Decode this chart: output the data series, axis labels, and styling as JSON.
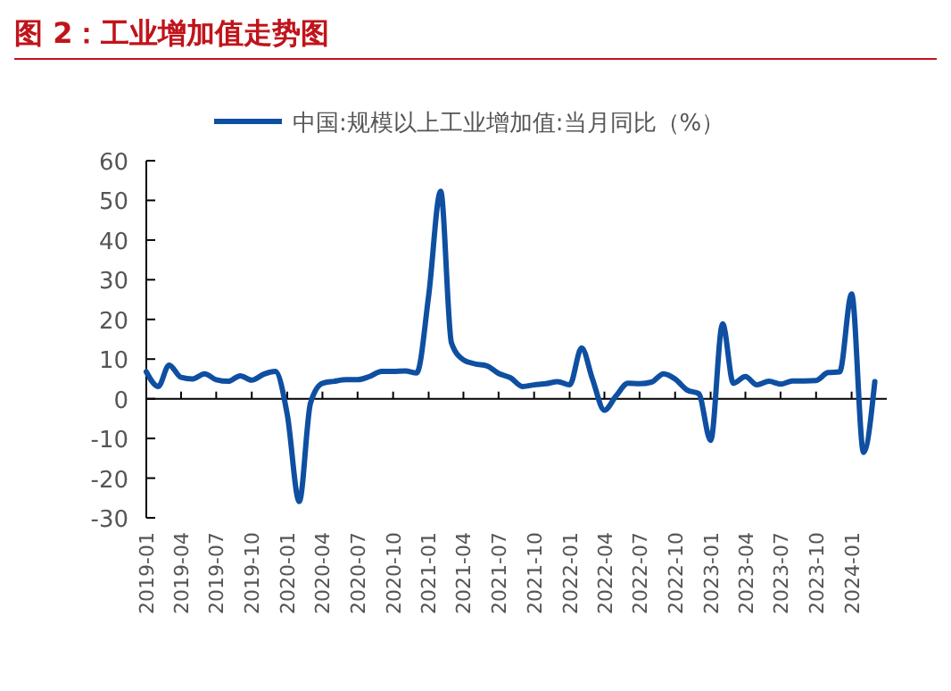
{
  "chart_data": {
    "type": "line",
    "title": "图 2：工业增加值走势图",
    "x": [
      "2019-01",
      "2019-02",
      "2019-03",
      "2019-04",
      "2019-05",
      "2019-06",
      "2019-07",
      "2019-08",
      "2019-09",
      "2019-10",
      "2019-11",
      "2019-12",
      "2020-01",
      "2020-02",
      "2020-03",
      "2020-04",
      "2020-05",
      "2020-06",
      "2020-07",
      "2020-08",
      "2020-09",
      "2020-10",
      "2020-11",
      "2020-12",
      "2021-01",
      "2021-02",
      "2021-03",
      "2021-04",
      "2021-05",
      "2021-06",
      "2021-07",
      "2021-08",
      "2021-09",
      "2021-10",
      "2021-11",
      "2021-12",
      "2022-01",
      "2022-02",
      "2022-03",
      "2022-04",
      "2022-05",
      "2022-06",
      "2022-07",
      "2022-08",
      "2022-09",
      "2022-10",
      "2022-11",
      "2022-12",
      "2023-01",
      "2023-02",
      "2023-03",
      "2023-04",
      "2023-05",
      "2023-06",
      "2023-07",
      "2023-08",
      "2023-09",
      "2023-10",
      "2023-11",
      "2023-12",
      "2024-01",
      "2024-02",
      "2024-03"
    ],
    "series": [
      {
        "name": "中国:规模以上工业增加值:当月同比（%）",
        "color": "#0e4fa1",
        "values": [
          6.8,
          3.1,
          8.5,
          5.4,
          5.0,
          6.3,
          4.8,
          4.4,
          5.8,
          4.7,
          6.2,
          6.9,
          -4,
          -25.9,
          -1.1,
          3.9,
          4.4,
          4.8,
          4.8,
          5.6,
          6.9,
          6.9,
          7.0,
          6.5,
          26,
          52.3,
          14.1,
          9.8,
          8.8,
          8.3,
          6.4,
          5.3,
          3.1,
          3.5,
          3.8,
          4.3,
          3.5,
          12.8,
          5.0,
          -2.9,
          0.7,
          3.9,
          3.8,
          4.2,
          6.3,
          5.0,
          2.2,
          1.3,
          -10.5,
          18.9,
          3.9,
          5.6,
          3.5,
          4.4,
          3.7,
          4.5,
          4.5,
          4.6,
          6.6,
          6.8,
          26.4,
          -13.5,
          4.3
        ]
      }
    ],
    "xlim": [
      "2019-01",
      "2024-04"
    ],
    "xticks": [
      "2019-01",
      "2019-04",
      "2019-07",
      "2019-10",
      "2020-01",
      "2020-04",
      "2020-07",
      "2020-10",
      "2021-01",
      "2021-04",
      "2021-07",
      "2021-10",
      "2022-01",
      "2022-04",
      "2022-07",
      "2022-10",
      "2023-01",
      "2023-04",
      "2023-07",
      "2023-10",
      "2024-01"
    ],
    "ylim": [
      -30,
      60
    ],
    "yticks": [
      -30,
      -20,
      -10,
      0,
      10,
      20,
      30,
      40,
      50,
      60
    ],
    "legend": "top",
    "marker": "none",
    "line_style": "solid"
  }
}
